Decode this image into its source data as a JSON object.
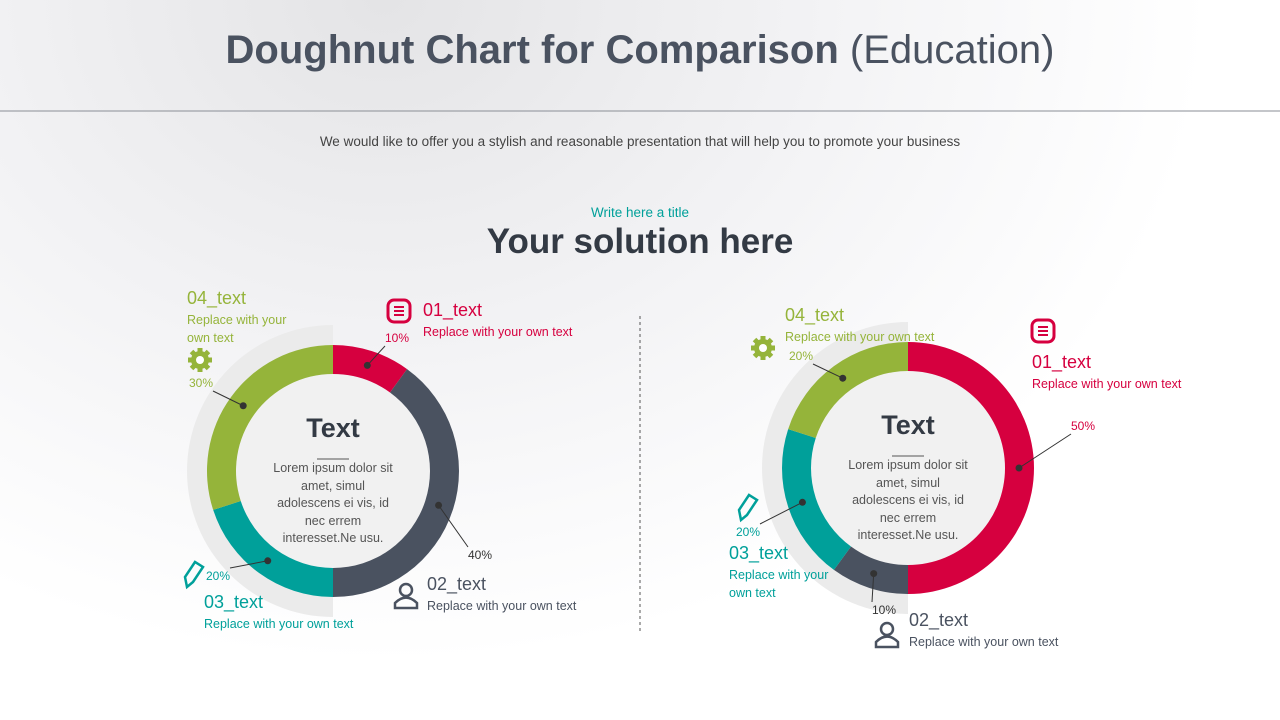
{
  "header": {
    "title": "Doughnut Chart for Comparison",
    "title_suffix": "(Education)",
    "subtitle": "We would like to offer you a stylish and reasonable presentation that will help you to promote your business"
  },
  "section": {
    "kicker": "Write here a title",
    "heading": "Your solution here"
  },
  "chart_data": [
    {
      "type": "doughnut",
      "center_title": "Text",
      "center_text": "Lorem ipsum dolor sit amet, simul adolescens ei vis, id nec errem interesset.Ne usu.",
      "categories": [
        "01_text",
        "02_text",
        "03_text",
        "04_text"
      ],
      "descriptions": [
        "Replace with your own text",
        "Replace with your own text",
        "Replace with your own text",
        "Replace with your own text"
      ],
      "values": [
        10,
        40,
        20,
        30
      ],
      "value_labels": [
        "10%",
        "40%",
        "20%",
        "30%"
      ],
      "colors": [
        "#d6003f",
        "#4a5260",
        "#00a09a",
        "#95b43a"
      ]
    },
    {
      "type": "doughnut",
      "center_title": "Text",
      "center_text": "Lorem ipsum dolor sit amet, simul adolescens ei vis, id nec errem interesset.Ne usu.",
      "categories": [
        "01_text",
        "02_text",
        "03_text",
        "04_text"
      ],
      "descriptions": [
        "Replace with your own text",
        "Replace with your own text",
        "Replace with your own text",
        "Replace with your own text"
      ],
      "values": [
        50,
        10,
        20,
        20
      ],
      "value_labels": [
        "50%",
        "10%",
        "20%",
        "20%"
      ],
      "colors": [
        "#d6003f",
        "#4a5260",
        "#00a09a",
        "#95b43a"
      ]
    }
  ]
}
